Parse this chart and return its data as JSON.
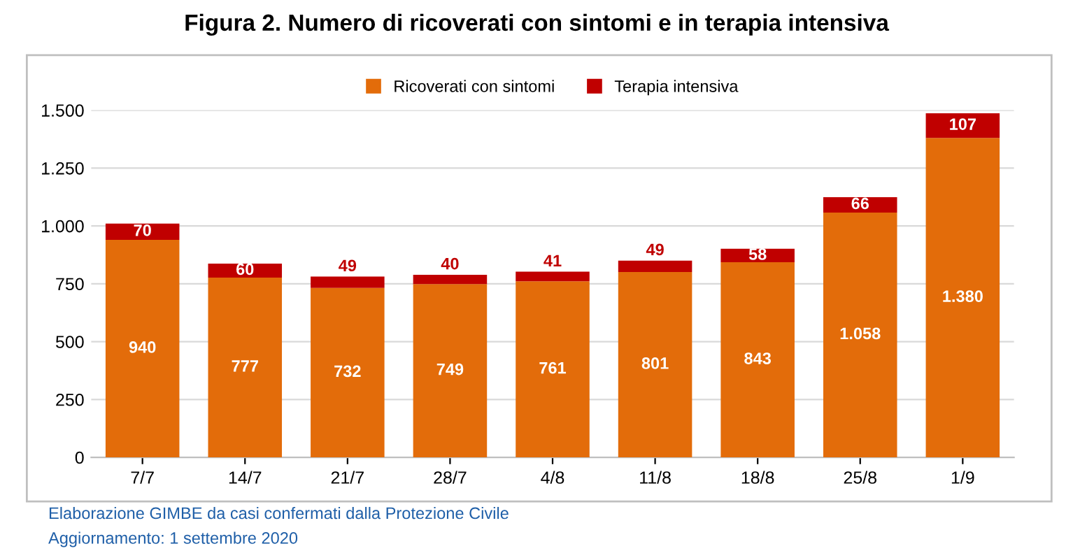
{
  "chart_data": {
    "type": "bar",
    "stacked": true,
    "title": "Figura 2. Numero di ricoverati con sintomi e in terapia intensiva",
    "categories": [
      "7/7",
      "14/7",
      "21/7",
      "28/7",
      "4/8",
      "11/8",
      "18/8",
      "25/8",
      "1/9"
    ],
    "series": [
      {
        "name": "Ricoverati con sintomi",
        "color": "#e36c0a",
        "values": [
          940,
          777,
          732,
          749,
          761,
          801,
          843,
          1058,
          1380
        ],
        "value_labels": [
          "940",
          "777",
          "732",
          "749",
          "761",
          "801",
          "843",
          "1.058",
          "1.380"
        ]
      },
      {
        "name": "Terapia intensiva",
        "color": "#c00000",
        "values": [
          70,
          60,
          49,
          40,
          41,
          49,
          58,
          66,
          107
        ],
        "value_labels": [
          "70",
          "60",
          "49",
          "40",
          "41",
          "49",
          "58",
          "66",
          "107"
        ]
      }
    ],
    "ylim": [
      0,
      1500
    ],
    "yticks": [
      0,
      250,
      500,
      750,
      {
        "value": 1000,
        "label": "1.000"
      },
      {
        "value": 1250,
        "label": "1.250"
      },
      {
        "value": 1500,
        "label": "1.500"
      }
    ],
    "grid": "y",
    "legend": "top",
    "annotations": [
      "Elaborazione GIMBE da casi confermati dalla Protezione Civile",
      "Aggiornamento: 1 settembre 2020"
    ]
  }
}
